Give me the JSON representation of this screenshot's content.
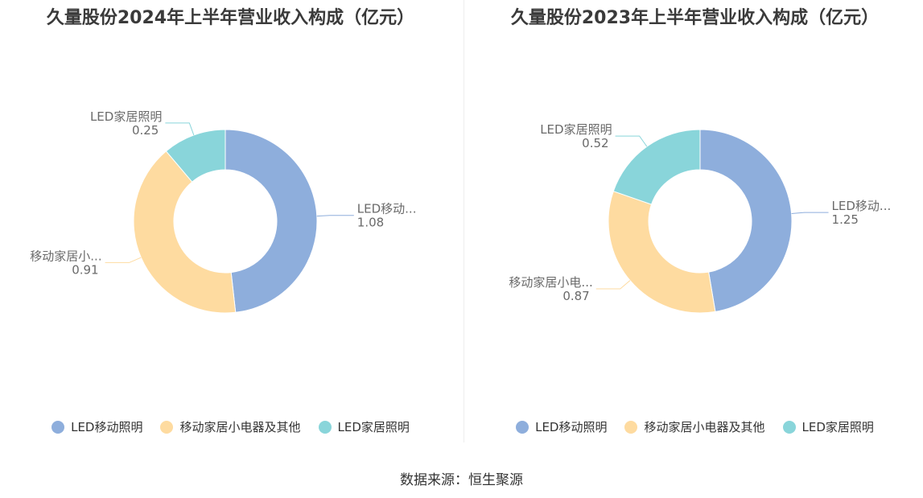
{
  "colors": {
    "LED移动照明": "#8eaedc",
    "移动家居小电器及其他": "#fedba0",
    "LED家居照明": "#89d5da"
  },
  "source": "数据来源：恒生聚源",
  "chart_data": [
    {
      "type": "pie",
      "variant": "donut",
      "title": "久量股份2024年上半年营业收入构成（亿元）",
      "categories": [
        "LED移动照明",
        "移动家居小电器及其他",
        "LED家居照明"
      ],
      "values": [
        1.08,
        0.91,
        0.25
      ],
      "labels": [
        "LED移动...",
        "移动家居小...",
        "LED家居照明"
      ],
      "legend": [
        "LED移动照明",
        "移动家居小电器及其他",
        "LED家居照明"
      ],
      "legend_position": "bottom"
    },
    {
      "type": "pie",
      "variant": "donut",
      "title": "久量股份2023年上半年营业收入构成（亿元）",
      "categories": [
        "LED移动照明",
        "移动家居小电器及其他",
        "LED家居照明"
      ],
      "values": [
        1.25,
        0.87,
        0.52
      ],
      "labels": [
        "LED移动...",
        "移动家居小电...",
        "LED家居照明"
      ],
      "legend": [
        "LED移动照明",
        "移动家居小电器及其他",
        "LED家居照明"
      ],
      "legend_position": "bottom"
    }
  ]
}
